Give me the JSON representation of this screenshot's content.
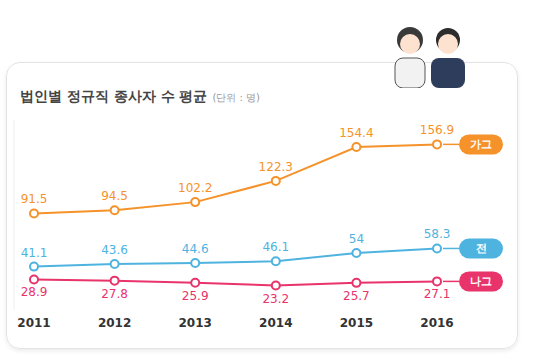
{
  "chart_data": {
    "type": "line",
    "title": "법인별 정규직 종사자 수 평균",
    "subtitle": "(단위 : 명)",
    "categories": [
      "2011",
      "2012",
      "2013",
      "2014",
      "2015",
      "2016"
    ],
    "series": [
      {
        "name": "가그",
        "color": "#f5922a",
        "values": [
          91.5,
          94.5,
          102.2,
          122.3,
          154.4,
          156.9
        ]
      },
      {
        "name": "전",
        "color": "#4fb3df",
        "values": [
          41.1,
          43.6,
          44.6,
          46.1,
          54,
          58.3
        ]
      },
      {
        "name": "나그",
        "color": "#e8336b",
        "values": [
          28.9,
          27.8,
          25.9,
          23.2,
          25.7,
          27.1
        ]
      }
    ],
    "ylim": [
      0,
      180
    ],
    "grid": false,
    "data_labels": true,
    "tick_labels": "x",
    "marker": "circle"
  }
}
